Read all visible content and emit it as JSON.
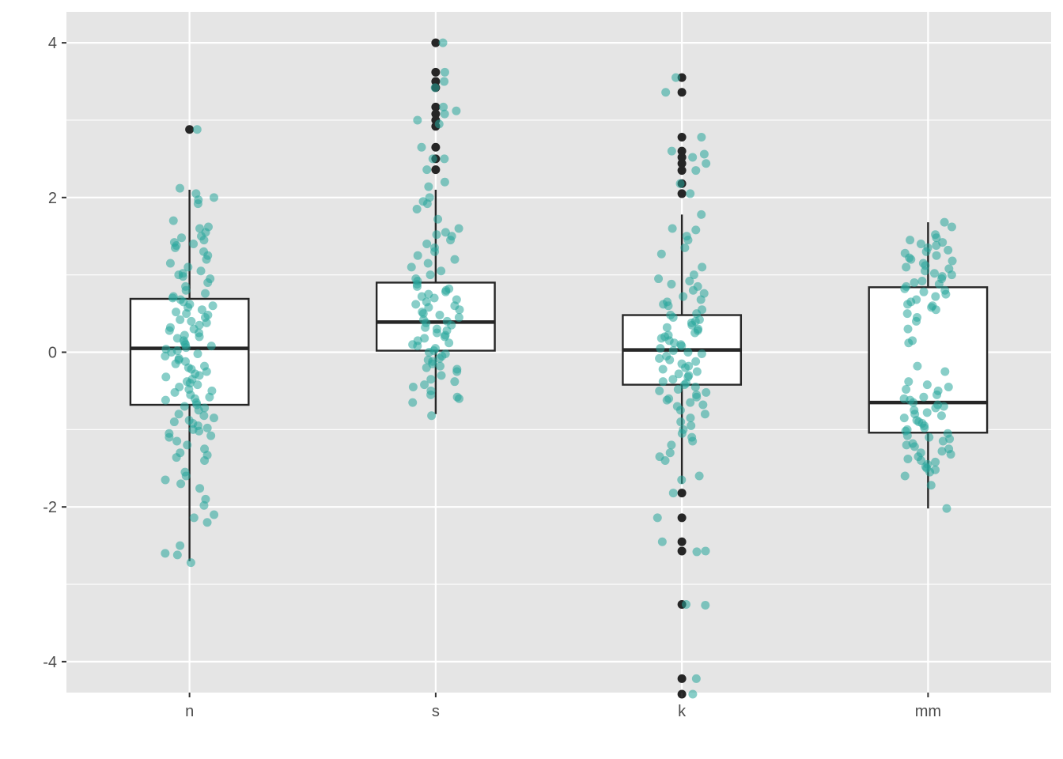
{
  "chart_data": {
    "type": "boxplot",
    "title": "",
    "xlabel": "",
    "ylabel": "",
    "categories": [
      "n",
      "s",
      "k",
      "mm"
    ],
    "ylim": [
      -4.4,
      4.4
    ],
    "y_ticks": [
      4,
      2,
      0,
      -2,
      -4
    ],
    "y_tick_labels": [
      "4",
      "2",
      "0",
      "-2",
      "-4"
    ],
    "grid": true,
    "legend": "none",
    "colors": {
      "panel": "#e5e5e5",
      "grid": "#ffffff",
      "box_fill": "#ffffff",
      "box_line": "#262626",
      "jitter": "#26a69a",
      "outlier": "#262626"
    },
    "boxes": [
      {
        "category": "n",
        "whisker_low": -2.7,
        "q1": -0.68,
        "median": 0.05,
        "q3": 0.69,
        "whisker_high": 2.1,
        "outliers": [
          2.88
        ]
      },
      {
        "category": "s",
        "whisker_low": -0.8,
        "q1": 0.02,
        "median": 0.39,
        "q3": 0.9,
        "whisker_high": 2.1,
        "outliers": [
          4.0,
          3.62,
          3.5,
          3.42,
          3.17,
          3.08,
          3.0,
          2.92,
          2.65,
          2.5,
          2.36
        ]
      },
      {
        "category": "k",
        "whisker_low": -1.7,
        "q1": -0.42,
        "median": 0.03,
        "q3": 0.48,
        "whisker_high": 1.78,
        "outliers": [
          3.55,
          3.36,
          2.78,
          2.6,
          2.52,
          2.44,
          2.35,
          2.18,
          2.05,
          -1.82,
          -2.14,
          -2.45,
          -2.57,
          -3.26,
          -4.22,
          -4.42
        ]
      },
      {
        "category": "mm",
        "whisker_low": -2.02,
        "q1": -1.04,
        "median": -0.65,
        "q3": 0.84,
        "whisker_high": 1.68,
        "outliers": []
      }
    ],
    "jitter_points": [
      {
        "category": "n",
        "values": [
          2.88,
          2.12,
          2.05,
          2.0,
          1.97,
          1.92,
          1.7,
          1.62,
          1.6,
          1.55,
          1.5,
          1.48,
          1.45,
          1.42,
          1.4,
          1.38,
          1.35,
          1.3,
          1.25,
          1.2,
          1.15,
          1.1,
          1.05,
          1.02,
          1.0,
          0.98,
          0.95,
          0.9,
          0.85,
          0.8,
          0.76,
          0.72,
          0.7,
          0.68,
          0.65,
          0.62,
          0.6,
          0.58,
          0.55,
          0.52,
          0.5,
          0.48,
          0.45,
          0.42,
          0.4,
          0.38,
          0.35,
          0.32,
          0.3,
          0.28,
          0.25,
          0.22,
          0.2,
          0.18,
          0.15,
          0.12,
          0.1,
          0.08,
          0.06,
          0.04,
          0.02,
          0.0,
          -0.02,
          -0.05,
          -0.08,
          -0.1,
          -0.12,
          -0.15,
          -0.18,
          -0.2,
          -0.22,
          -0.25,
          -0.28,
          -0.3,
          -0.32,
          -0.35,
          -0.38,
          -0.4,
          -0.42,
          -0.45,
          -0.48,
          -0.5,
          -0.52,
          -0.55,
          -0.58,
          -0.6,
          -0.62,
          -0.65,
          -0.68,
          -0.7,
          -0.72,
          -0.75,
          -0.8,
          -0.82,
          -0.85,
          -0.88,
          -0.9,
          -0.92,
          -0.95,
          -0.98,
          -1.0,
          -1.02,
          -1.05,
          -1.08,
          -1.1,
          -1.15,
          -1.2,
          -1.25,
          -1.3,
          -1.33,
          -1.36,
          -1.4,
          -1.55,
          -1.6,
          -1.65,
          -1.7,
          -1.76,
          -1.9,
          -1.98,
          -2.1,
          -2.14,
          -2.2,
          -2.5,
          -2.6,
          -2.62,
          -2.72
        ]
      },
      {
        "category": "s",
        "values": [
          4.0,
          3.62,
          3.5,
          3.42,
          3.17,
          3.12,
          3.08,
          3.0,
          2.95,
          2.65,
          2.5,
          2.5,
          2.36,
          2.2,
          2.14,
          2.0,
          1.95,
          1.92,
          1.85,
          1.72,
          1.6,
          1.55,
          1.52,
          1.5,
          1.45,
          1.4,
          1.35,
          1.3,
          1.25,
          1.2,
          1.15,
          1.1,
          1.05,
          1.0,
          0.95,
          0.92,
          0.88,
          0.85,
          0.82,
          0.8,
          0.78,
          0.75,
          0.72,
          0.7,
          0.68,
          0.65,
          0.62,
          0.6,
          0.58,
          0.55,
          0.52,
          0.5,
          0.48,
          0.45,
          0.42,
          0.4,
          0.38,
          0.35,
          0.32,
          0.3,
          0.28,
          0.25,
          0.22,
          0.2,
          0.18,
          0.15,
          0.12,
          0.1,
          0.08,
          0.05,
          0.02,
          0.0,
          -0.02,
          -0.05,
          -0.08,
          -0.1,
          -0.12,
          -0.15,
          -0.18,
          -0.2,
          -0.22,
          -0.25,
          -0.3,
          -0.35,
          -0.38,
          -0.42,
          -0.45,
          -0.5,
          -0.55,
          -0.58,
          -0.6,
          -0.65,
          -0.82
        ]
      },
      {
        "category": "k",
        "values": [
          3.55,
          3.36,
          2.78,
          2.6,
          2.56,
          2.52,
          2.44,
          2.35,
          2.18,
          2.05,
          1.78,
          1.6,
          1.58,
          1.5,
          1.45,
          1.35,
          1.27,
          1.1,
          1.0,
          0.95,
          0.92,
          0.88,
          0.85,
          0.8,
          0.76,
          0.72,
          0.68,
          0.65,
          0.62,
          0.6,
          0.55,
          0.5,
          0.48,
          0.45,
          0.42,
          0.4,
          0.38,
          0.35,
          0.32,
          0.3,
          0.28,
          0.25,
          0.22,
          0.2,
          0.18,
          0.15,
          0.12,
          0.1,
          0.08,
          0.05,
          0.02,
          0.0,
          -0.02,
          -0.05,
          -0.08,
          -0.1,
          -0.12,
          -0.15,
          -0.18,
          -0.2,
          -0.22,
          -0.25,
          -0.28,
          -0.3,
          -0.32,
          -0.35,
          -0.38,
          -0.4,
          -0.42,
          -0.45,
          -0.48,
          -0.5,
          -0.52,
          -0.55,
          -0.58,
          -0.6,
          -0.62,
          -0.65,
          -0.68,
          -0.7,
          -0.75,
          -0.8,
          -0.85,
          -0.9,
          -0.95,
          -1.0,
          -1.05,
          -1.1,
          -1.15,
          -1.2,
          -1.3,
          -1.35,
          -1.4,
          -1.6,
          -1.65,
          -1.82,
          -2.14,
          -2.45,
          -2.57,
          -2.58,
          -3.26,
          -3.27,
          -4.22,
          -4.42
        ]
      },
      {
        "category": "mm",
        "values": [
          1.68,
          1.62,
          1.52,
          1.48,
          1.45,
          1.42,
          1.4,
          1.38,
          1.35,
          1.32,
          1.3,
          1.28,
          1.25,
          1.22,
          1.2,
          1.18,
          1.15,
          1.12,
          1.1,
          1.08,
          1.05,
          1.02,
          1.0,
          0.98,
          0.95,
          0.92,
          0.9,
          0.88,
          0.85,
          0.82,
          0.8,
          0.78,
          0.75,
          0.72,
          0.68,
          0.65,
          0.62,
          0.6,
          0.58,
          0.55,
          0.5,
          0.45,
          0.4,
          0.3,
          0.15,
          0.12,
          -0.18,
          -0.25,
          -0.38,
          -0.42,
          -0.45,
          -0.48,
          -0.5,
          -0.55,
          -0.58,
          -0.6,
          -0.62,
          -0.65,
          -0.68,
          -0.7,
          -0.72,
          -0.75,
          -0.78,
          -0.8,
          -0.82,
          -0.85,
          -0.88,
          -0.9,
          -0.92,
          -0.95,
          -0.98,
          -1.0,
          -1.02,
          -1.05,
          -1.08,
          -1.1,
          -1.12,
          -1.15,
          -1.18,
          -1.2,
          -1.22,
          -1.25,
          -1.28,
          -1.3,
          -1.32,
          -1.35,
          -1.38,
          -1.4,
          -1.42,
          -1.45,
          -1.48,
          -1.5,
          -1.52,
          -1.55,
          -1.6,
          -1.72,
          -2.02
        ]
      }
    ]
  }
}
